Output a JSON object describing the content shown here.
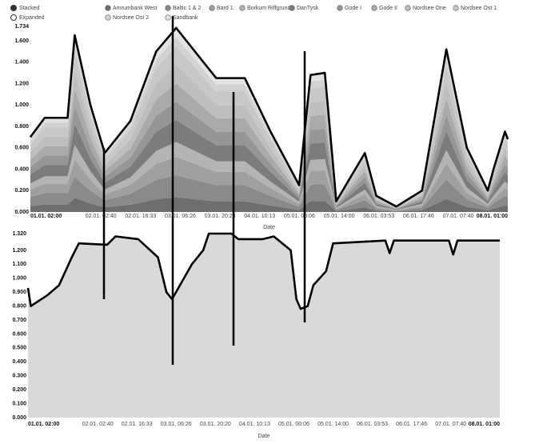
{
  "chart_data": [
    {
      "type": "stacked_area",
      "modes": [
        "Stacked",
        "Expanded"
      ],
      "x_label": "Date",
      "x": [
        "01.01. 02:00",
        "01.01. 07:00",
        "01.01. 15:00",
        "01.01. 17:30",
        "01.01. 23:00",
        "02.01. 04:00",
        "02.01. 13:00",
        "02.01. 22:00",
        "03.01. 05:00",
        "03.01. 13:00",
        "03.01. 19:00",
        "04.01. 05:00",
        "04.01. 14:00",
        "05.01. 00:00",
        "05.01. 04:00",
        "05.01. 09:00",
        "05.01. 13:00",
        "05.01. 23:00",
        "06.01. 03:00",
        "06.01. 10:00",
        "06.01. 19:00",
        "07.01. 03:30",
        "07.01. 10:40",
        "07.01. 18:00",
        "07.01. 20:00",
        "08.01. 00:00",
        "08.01. 01:00"
      ],
      "xlim": [
        "01.01. 02:00",
        "08.01. 01:00"
      ],
      "xticks": [
        "01.01. 02:00",
        "02.01. 02:40",
        "02.01. 16:33",
        "03.01. 06:26",
        "03.01. 20:20",
        "04.01. 10:13",
        "05.01. 00:06",
        "05.01. 14:00",
        "06.01. 03:53",
        "06.01. 17:46",
        "07.01. 07:40",
        "08.01. 01:00"
      ],
      "ylim": [
        0,
        1.734
      ],
      "yticks": [
        {
          "value": 0,
          "label": "0.000"
        },
        {
          "value": 0.2,
          "label": "0.200"
        },
        {
          "value": 0.4,
          "label": "0.400"
        },
        {
          "value": 0.6,
          "label": "0.600"
        },
        {
          "value": 0.8,
          "label": "0.800"
        },
        {
          "value": 1.0,
          "label": "1.000"
        },
        {
          "value": 1.2,
          "label": "1.200"
        },
        {
          "value": 1.4,
          "label": "1.400"
        },
        {
          "value": 1.6,
          "label": "1.600"
        },
        1.734
      ],
      "series": [
        {
          "name": "Amrumbank West",
          "color": "#6e6e6e",
          "values": [
            0.056,
            0.07,
            0.07,
            0.132,
            0.08,
            0.044,
            0.068,
            0.12,
            0.138,
            0.116,
            0.1,
            0.1,
            0.06,
            0.02,
            0.102,
            0.104,
            0.008,
            0.044,
            0.012,
            0.004,
            0.016,
            0.122,
            0.048,
            0.016,
            0.032,
            0.06,
            0.054
          ]
        },
        {
          "name": "Baltic 1 & 2",
          "color": "#8a8a8a",
          "values": [
            0.084,
            0.106,
            0.106,
            0.198,
            0.12,
            0.066,
            0.102,
            0.18,
            0.206,
            0.174,
            0.15,
            0.15,
            0.09,
            0.03,
            0.154,
            0.156,
            0.012,
            0.066,
            0.018,
            0.006,
            0.024,
            0.182,
            0.072,
            0.024,
            0.048,
            0.09,
            0.082
          ]
        },
        {
          "name": "Bard 1",
          "color": "#a0a0a0",
          "values": [
            0.07,
            0.088,
            0.088,
            0.165,
            0.1,
            0.055,
            0.085,
            0.15,
            0.172,
            0.145,
            0.125,
            0.125,
            0.075,
            0.025,
            0.128,
            0.13,
            0.01,
            0.055,
            0.015,
            0.005,
            0.02,
            0.152,
            0.06,
            0.02,
            0.04,
            0.075,
            0.068
          ]
        },
        {
          "name": "Borkum Riffgrund I",
          "color": "#b4b4b4",
          "values": [
            0.056,
            0.07,
            0.07,
            0.132,
            0.08,
            0.044,
            0.068,
            0.12,
            0.138,
            0.116,
            0.1,
            0.1,
            0.06,
            0.02,
            0.102,
            0.104,
            0.008,
            0.044,
            0.012,
            0.004,
            0.016,
            0.122,
            0.048,
            0.016,
            0.032,
            0.06,
            0.054
          ]
        },
        {
          "name": "DanTysk",
          "color": "#7c7c7c",
          "values": [
            0.084,
            0.106,
            0.106,
            0.198,
            0.12,
            0.066,
            0.102,
            0.18,
            0.206,
            0.174,
            0.15,
            0.15,
            0.09,
            0.03,
            0.154,
            0.156,
            0.012,
            0.066,
            0.018,
            0.006,
            0.024,
            0.182,
            0.072,
            0.024,
            0.048,
            0.09,
            0.082
          ]
        },
        {
          "name": "Gode I",
          "color": "#969696",
          "values": [
            0.07,
            0.088,
            0.088,
            0.165,
            0.1,
            0.055,
            0.085,
            0.15,
            0.172,
            0.145,
            0.125,
            0.125,
            0.075,
            0.025,
            0.128,
            0.13,
            0.01,
            0.055,
            0.015,
            0.005,
            0.02,
            0.152,
            0.06,
            0.02,
            0.04,
            0.075,
            0.068
          ]
        },
        {
          "name": "Gode II",
          "color": "#aaaaaa",
          "values": [
            0.07,
            0.088,
            0.088,
            0.165,
            0.1,
            0.055,
            0.085,
            0.15,
            0.172,
            0.145,
            0.125,
            0.125,
            0.075,
            0.025,
            0.128,
            0.13,
            0.01,
            0.055,
            0.015,
            0.005,
            0.02,
            0.152,
            0.06,
            0.02,
            0.04,
            0.075,
            0.068
          ]
        },
        {
          "name": "Nordsee One",
          "color": "#bebebe",
          "values": [
            0.07,
            0.088,
            0.088,
            0.165,
            0.1,
            0.055,
            0.085,
            0.15,
            0.172,
            0.145,
            0.125,
            0.125,
            0.075,
            0.025,
            0.128,
            0.13,
            0.01,
            0.055,
            0.015,
            0.005,
            0.02,
            0.152,
            0.06,
            0.02,
            0.04,
            0.075,
            0.068
          ]
        },
        {
          "name": "Nordsee Ost 1",
          "color": "#c8c8c8",
          "values": [
            0.07,
            0.088,
            0.088,
            0.165,
            0.1,
            0.055,
            0.085,
            0.15,
            0.172,
            0.145,
            0.125,
            0.125,
            0.075,
            0.025,
            0.128,
            0.13,
            0.01,
            0.055,
            0.015,
            0.005,
            0.02,
            0.152,
            0.06,
            0.02,
            0.04,
            0.075,
            0.068
          ]
        },
        {
          "name": "Nordsee Ost 2",
          "color": "#d2d2d2",
          "values": [
            0.035,
            0.044,
            0.044,
            0.083,
            0.05,
            0.028,
            0.043,
            0.075,
            0.086,
            0.073,
            0.063,
            0.063,
            0.038,
            0.013,
            0.064,
            0.065,
            0.005,
            0.028,
            0.008,
            0.003,
            0.01,
            0.076,
            0.03,
            0.01,
            0.02,
            0.038,
            0.034
          ]
        },
        {
          "name": "Sandbank",
          "color": "#e2e2e2",
          "values": [
            0.035,
            0.044,
            0.044,
            0.083,
            0.05,
            0.028,
            0.043,
            0.075,
            0.086,
            0.073,
            0.063,
            0.063,
            0.038,
            0.013,
            0.064,
            0.065,
            0.005,
            0.028,
            0.008,
            0.003,
            0.01,
            0.076,
            0.03,
            0.01,
            0.02,
            0.038,
            0.034
          ]
        }
      ]
    },
    {
      "type": "area",
      "x_label": "Date",
      "color": "#d9d9d9",
      "x": [
        "01.01. 02:00",
        "01.01. 03:00",
        "01.01. 09:00",
        "01.01. 13:00",
        "01.01. 17:30",
        "01.01. 20:00",
        "02.01. 06:00",
        "02.01. 09:00",
        "02.01. 17:00",
        "03.01. 00:00",
        "03.01. 03:00",
        "03.01. 05:00",
        "03.01. 12:00",
        "03.01. 16:00",
        "03.01. 18:00",
        "04.01. 02:00",
        "04.01. 04:30",
        "04.01. 13:00",
        "04.01. 17:00",
        "04.01. 23:00",
        "05.01. 01:00",
        "05.01. 02:30",
        "05.01. 05:00",
        "05.01. 07:00",
        "05.01. 11:30",
        "05.01. 14:00",
        "06.01. 08:30",
        "06.01. 10:00",
        "06.01. 11:30",
        "07.01. 07:00",
        "07.01. 08:30",
        "07.01. 10:00",
        "08.01. 01:00"
      ],
      "values": [
        0.93,
        0.8,
        0.88,
        0.95,
        1.15,
        1.25,
        1.24,
        1.3,
        1.28,
        1.15,
        0.9,
        0.85,
        1.1,
        1.2,
        1.32,
        1.32,
        1.28,
        1.28,
        1.3,
        1.2,
        0.85,
        0.78,
        0.8,
        0.95,
        1.05,
        1.25,
        1.27,
        1.18,
        1.27,
        1.27,
        1.17,
        1.27,
        1.27
      ],
      "xlim": [
        "01.01. 02:00",
        "08.01. 01:00"
      ],
      "xticks": [
        "01.01. 02:00",
        "02.01. 02:40",
        "02.01. 16:33",
        "03.01. 06:26",
        "03.01. 20:20",
        "04.01. 10:13",
        "05.01. 00:06",
        "05.01. 14:00",
        "06.01. 03:53",
        "06.01. 17:46",
        "07.01. 07:40",
        "08.01. 01:00"
      ],
      "ylim": [
        0,
        1.32
      ],
      "yticks": [
        {
          "value": 0,
          "label": "0.000"
        },
        {
          "value": 0.1,
          "label": "0.100"
        },
        {
          "value": 0.2,
          "label": "0.200"
        },
        {
          "value": 0.3,
          "label": "0.300"
        },
        {
          "value": 0.4,
          "label": "0.400"
        },
        {
          "value": 0.5,
          "label": "0.500"
        },
        {
          "value": 0.6,
          "label": "0.600"
        },
        {
          "value": 0.7,
          "label": "0.700"
        },
        {
          "value": 0.8,
          "label": "0.800"
        },
        {
          "value": 0.9,
          "label": "0.900"
        },
        {
          "value": 1.0,
          "label": "1.000"
        },
        {
          "value": 1.1,
          "label": "1.100"
        },
        {
          "value": 1.2,
          "label": "1.200"
        },
        {
          "value": 1.32,
          "label": "1.320"
        }
      ]
    }
  ]
}
